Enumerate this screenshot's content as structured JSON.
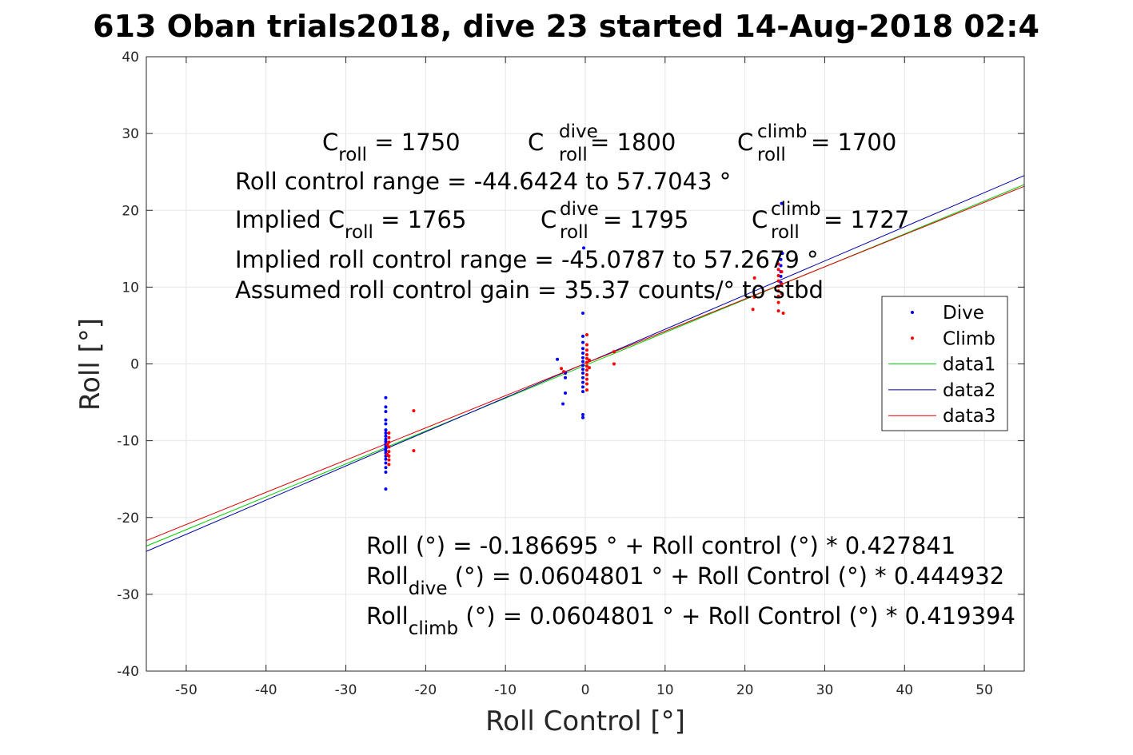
{
  "chart_data": {
    "type": "scatter",
    "title": "613 Oban trials2018, dive 23 started 14-Aug-2018 02:4",
    "xlabel": "Roll Control [°]",
    "ylabel": "Roll [°]",
    "xlim": [
      -55,
      55
    ],
    "ylim": [
      -40,
      40
    ],
    "xticks": [
      -50,
      -40,
      -30,
      -20,
      -10,
      0,
      10,
      20,
      30,
      40,
      50
    ],
    "yticks": [
      -40,
      -30,
      -20,
      -10,
      0,
      10,
      20,
      30,
      40
    ],
    "grid": true,
    "legend_position": "right",
    "series": [
      {
        "name": "Dive",
        "kind": "points",
        "color": "#0000ff",
        "points": [
          [
            -25,
            -4.4
          ],
          [
            -25,
            -5.6
          ],
          [
            -25,
            -6.2
          ],
          [
            -25,
            -7.3
          ],
          [
            -25,
            -7.8
          ],
          [
            -25,
            -8.6
          ],
          [
            -25,
            -9.0
          ],
          [
            -25,
            -9.4
          ],
          [
            -25,
            -9.8
          ],
          [
            -25,
            -10.1
          ],
          [
            -25,
            -10.4
          ],
          [
            -25,
            -10.7
          ],
          [
            -25,
            -11.0
          ],
          [
            -25,
            -11.3
          ],
          [
            -25,
            -11.6
          ],
          [
            -25,
            -12.0
          ],
          [
            -25,
            -12.4
          ],
          [
            -25,
            -12.9
          ],
          [
            -25,
            -13.5
          ],
          [
            -25,
            -14.1
          ],
          [
            -25,
            -16.3
          ],
          [
            -3.5,
            0.6
          ],
          [
            -2.5,
            -1.2
          ],
          [
            -2.5,
            -1.8
          ],
          [
            -2.5,
            -3.8
          ],
          [
            -2.8,
            -5.2
          ],
          [
            -0.3,
            6.6
          ],
          [
            -0.3,
            3.6
          ],
          [
            -0.3,
            2.8
          ],
          [
            -0.3,
            2.0
          ],
          [
            -0.3,
            1.4
          ],
          [
            -0.3,
            0.8
          ],
          [
            -0.3,
            0.3
          ],
          [
            -0.3,
            -0.2
          ],
          [
            -0.3,
            -0.7
          ],
          [
            -0.3,
            -1.2
          ],
          [
            -0.3,
            -1.8
          ],
          [
            -0.3,
            -2.4
          ],
          [
            -0.3,
            -3.0
          ],
          [
            -0.3,
            -3.6
          ],
          [
            -0.3,
            -6.6
          ],
          [
            -0.3,
            -7.0
          ],
          [
            -0.2,
            15.1
          ],
          [
            24.5,
            10.6
          ],
          [
            24.5,
            11.4
          ],
          [
            24.5,
            12.0
          ],
          [
            24.5,
            12.8
          ],
          [
            24.5,
            13.6
          ],
          [
            24.7,
            14.4
          ],
          [
            24.6,
            20.9
          ]
        ]
      },
      {
        "name": "Climb",
        "kind": "points",
        "color": "#ff0000",
        "points": [
          [
            -24.6,
            -9.0
          ],
          [
            -24.6,
            -9.6
          ],
          [
            -24.6,
            -10.2
          ],
          [
            -24.6,
            -10.8
          ],
          [
            -24.6,
            -11.4
          ],
          [
            -24.6,
            -12.0
          ],
          [
            -24.6,
            -12.5
          ],
          [
            -24.6,
            -13.1
          ],
          [
            -24.8,
            -10.5
          ],
          [
            -24.8,
            -11.8
          ],
          [
            -21.5,
            -6.1
          ],
          [
            -21.5,
            -11.3
          ],
          [
            -3.0,
            -0.6
          ],
          [
            -2.7,
            -1.0
          ],
          [
            0.2,
            3.8
          ],
          [
            0.2,
            2.5
          ],
          [
            0.2,
            1.8
          ],
          [
            0.2,
            1.2
          ],
          [
            0.2,
            0.7
          ],
          [
            0.2,
            0.2
          ],
          [
            0.2,
            -0.3
          ],
          [
            0.2,
            -0.8
          ],
          [
            0.2,
            -1.4
          ],
          [
            0.2,
            -2.0
          ],
          [
            0.2,
            -2.6
          ],
          [
            0.2,
            -3.4
          ],
          [
            0.5,
            0.5
          ],
          [
            0.5,
            -0.5
          ],
          [
            3.6,
            1.6
          ],
          [
            3.6,
            0.0
          ],
          [
            21.0,
            7.1
          ],
          [
            21.2,
            8.7
          ],
          [
            21.2,
            11.2
          ],
          [
            24.2,
            6.9
          ],
          [
            24.2,
            8.0
          ],
          [
            24.2,
            8.8
          ],
          [
            24.2,
            9.5
          ],
          [
            24.2,
            10.1
          ],
          [
            24.2,
            10.8
          ],
          [
            24.2,
            11.5
          ],
          [
            24.2,
            12.3
          ],
          [
            24.2,
            13.0
          ],
          [
            24.6,
            9.2
          ],
          [
            24.6,
            10.4
          ],
          [
            24.6,
            12.0
          ],
          [
            24.8,
            6.6
          ]
        ]
      },
      {
        "name": "data1",
        "kind": "line",
        "color": "#00cc00",
        "x": [
          -55,
          55
        ],
        "y": [
          -23.72,
          23.35
        ]
      },
      {
        "name": "data2",
        "kind": "line",
        "color": "#0000aa",
        "x": [
          -55,
          55
        ],
        "y": [
          -24.41,
          24.53
        ]
      },
      {
        "name": "data3",
        "kind": "line",
        "color": "#dd0000",
        "x": [
          -55,
          55
        ],
        "y": [
          -23.01,
          23.13
        ]
      }
    ],
    "annotations": {
      "line1": {
        "c_roll_base": "C",
        "c_roll_sub": "roll",
        "c_roll_value": " = 1750",
        "c_dive_base": "C",
        "c_dive_sup": "dive",
        "c_dive_sub": "roll",
        "c_dive_value": " = 1800",
        "c_climb_base": "C",
        "c_climb_sup": "climb",
        "c_climb_sub": "roll",
        "c_climb_value": " = 1700"
      },
      "line2": "Roll control range = -44.6424 to 57.7043 °",
      "line3": {
        "implied_prefix": "Implied C",
        "implied_sub": "roll",
        "implied_value": " = 1765",
        "c_dive_base": "C",
        "c_dive_sup": "dive",
        "c_dive_sub": "roll",
        "c_dive_value": " = 1795",
        "c_climb_base": "C",
        "c_climb_sup": "climb",
        "c_climb_sub": "roll",
        "c_climb_value": " = 1727"
      },
      "line4": "Implied roll control range = -45.0787 to 57.2679 °",
      "line5": "Assumed roll control gain = 35.37 counts/° to stbd",
      "eq1": "Roll (°) = -0.186695 ° + Roll control (°) * 0.427841",
      "eq2": {
        "base": "Roll",
        "sub": "dive",
        "rest": " (°) = 0.0604801 ° + Roll Control (°) * 0.444932"
      },
      "eq3": {
        "base": "Roll",
        "sub": "climb",
        "rest": " (°) = 0.0604801 ° + Roll Control (°) * 0.419394"
      }
    }
  }
}
